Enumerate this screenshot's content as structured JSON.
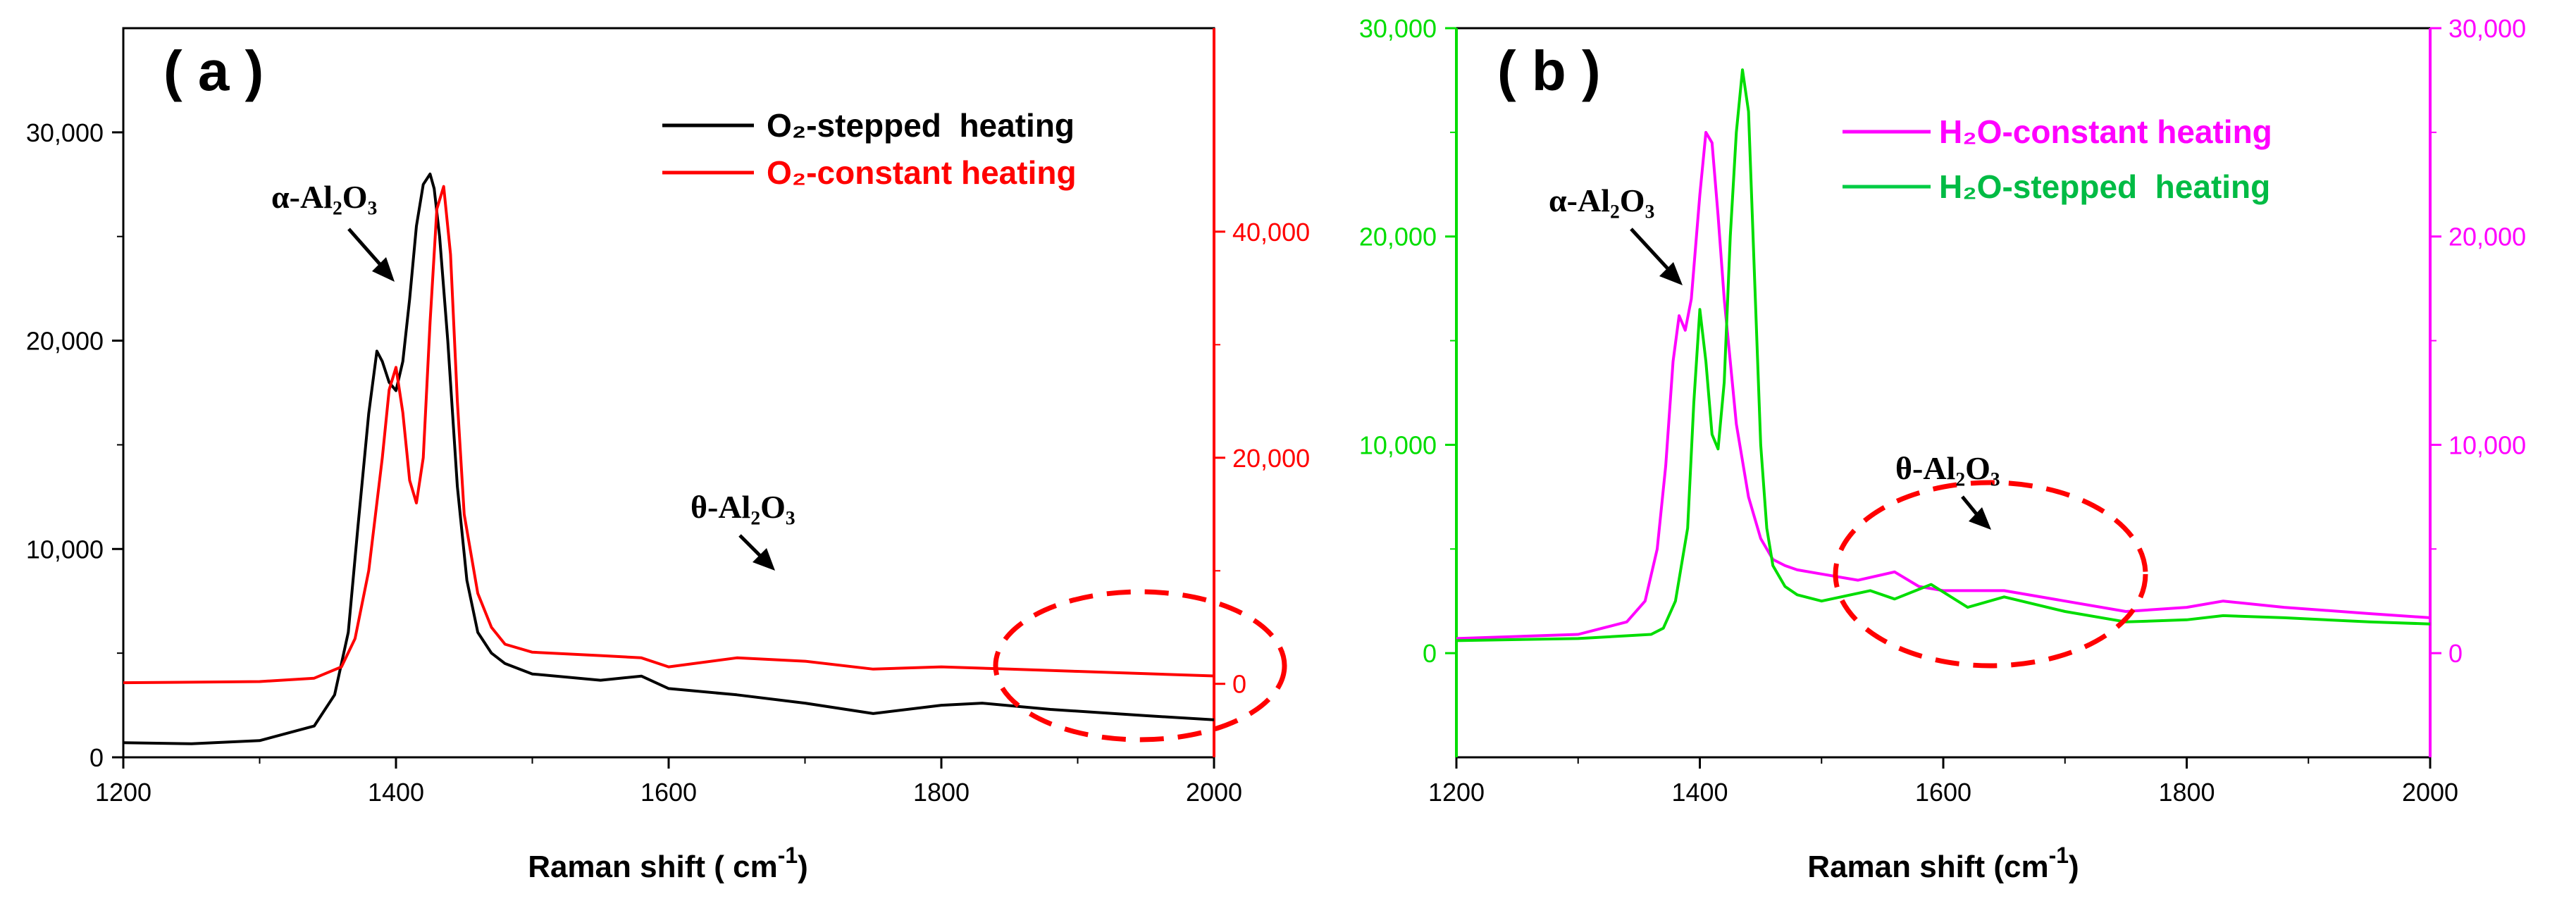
{
  "chart_data": [
    {
      "panel_label": "( a )",
      "type": "line",
      "xlabel": "Raman shift ( cm",
      "xlabel_sup": "-1",
      "xlabel_tail": ")",
      "xlim": [
        1200,
        2000
      ],
      "x_ticks": [
        1200,
        1400,
        1600,
        1800,
        2000
      ],
      "x_tick_labels": [
        "1200",
        "1400",
        "1600",
        "1800",
        "2000"
      ],
      "left_axis": {
        "ylim": [
          0,
          35000
        ],
        "ticks": [
          0,
          10000,
          20000,
          30000
        ],
        "tick_labels": [
          "0",
          "10,000",
          "20,000",
          "30,000"
        ],
        "color": "#000000"
      },
      "right_axis": {
        "ylim": [
          -6500,
          58000
        ],
        "ticks": [
          0,
          20000,
          40000
        ],
        "tick_labels": [
          "0",
          "20,000",
          "40,000"
        ],
        "color": "#ff0000"
      },
      "series": [
        {
          "name": "O2-stepped heating",
          "axis": "left",
          "color": "#000000",
          "x": [
            1200,
            1250,
            1300,
            1340,
            1355,
            1365,
            1372,
            1380,
            1386,
            1390,
            1395,
            1400,
            1405,
            1410,
            1415,
            1420,
            1425,
            1428,
            1432,
            1438,
            1445,
            1452,
            1460,
            1470,
            1480,
            1500,
            1550,
            1580,
            1600,
            1650,
            1700,
            1750,
            1800,
            1830,
            1880,
            1950,
            2000
          ],
          "y": [
            700,
            650,
            800,
            1500,
            3000,
            6000,
            11000,
            16500,
            19500,
            19000,
            18000,
            17600,
            19000,
            22000,
            25500,
            27500,
            28000,
            27300,
            25000,
            20000,
            13000,
            8500,
            6000,
            5000,
            4500,
            4000,
            3700,
            3900,
            3300,
            3000,
            2600,
            2100,
            2500,
            2600,
            2300,
            2000,
            1800
          ]
        },
        {
          "name": "O2-constant heating",
          "axis": "right",
          "color": "#ff0000",
          "x": [
            1200,
            1300,
            1340,
            1360,
            1370,
            1380,
            1390,
            1395,
            1400,
            1405,
            1410,
            1415,
            1420,
            1425,
            1430,
            1435,
            1440,
            1445,
            1450,
            1460,
            1470,
            1480,
            1500,
            1550,
            1580,
            1600,
            1650,
            1700,
            1750,
            1800,
            1850,
            1900,
            1950,
            2000
          ],
          "y": [
            100,
            200,
            500,
            1500,
            4000,
            10000,
            20000,
            26000,
            28000,
            24000,
            18000,
            16000,
            20000,
            32000,
            42000,
            44000,
            38000,
            25000,
            15000,
            8000,
            5000,
            3500,
            2800,
            2500,
            2300,
            1500,
            2300,
            2000,
            1300,
            1500,
            1300,
            1100,
            900,
            700
          ]
        }
      ],
      "legend": [
        "O₂-stepped  heating",
        "O₂-constant heating"
      ],
      "annotations": {
        "alpha": {
          "label": "α-Al₂O₃",
          "points_to_x": 1390,
          "points_to_y": 22000
        },
        "theta": {
          "label": "θ-Al₂O₃",
          "points_to_x": 1680,
          "points_to_y": 9500
        }
      }
    },
    {
      "panel_label": "( b )",
      "type": "line",
      "xlabel": "Raman shift (cm",
      "xlabel_sup": "-1",
      "xlabel_tail": ")",
      "xlim": [
        1200,
        2000
      ],
      "x_ticks": [
        1200,
        1400,
        1600,
        1800,
        2000
      ],
      "x_tick_labels": [
        "1200",
        "1400",
        "1600",
        "1800",
        "2000"
      ],
      "left_axis": {
        "ylim": [
          -5000,
          30000
        ],
        "ticks": [
          0,
          10000,
          20000,
          30000
        ],
        "tick_labels": [
          "0",
          "10,000",
          "20,000",
          "30,000"
        ],
        "color": "#00dd00"
      },
      "right_axis": {
        "ylim": [
          -5000,
          30000
        ],
        "ticks": [
          0,
          10000,
          20000,
          30000
        ],
        "tick_labels": [
          "0",
          "10,000",
          "20,000",
          "30,000"
        ],
        "color": "#ff00ff"
      },
      "series": [
        {
          "name": "H2O-constant heating",
          "axis": "right",
          "color": "#ff00ff",
          "x": [
            1200,
            1300,
            1340,
            1355,
            1365,
            1372,
            1378,
            1383,
            1388,
            1393,
            1400,
            1405,
            1410,
            1415,
            1420,
            1430,
            1440,
            1450,
            1460,
            1470,
            1480,
            1500,
            1530,
            1560,
            1580,
            1600,
            1650,
            1700,
            1750,
            1800,
            1830,
            1880,
            1950,
            2000
          ],
          "y": [
            700,
            900,
            1500,
            2500,
            5000,
            9000,
            14000,
            16200,
            15500,
            17000,
            22000,
            25000,
            24500,
            21000,
            17000,
            11000,
            7500,
            5500,
            4500,
            4200,
            4000,
            3800,
            3500,
            3900,
            3200,
            3000,
            3000,
            2500,
            2000,
            2200,
            2500,
            2200,
            1900,
            1700
          ]
        },
        {
          "name": "H2O-stepped heating",
          "axis": "left",
          "color": "#00dd00",
          "x": [
            1200,
            1300,
            1360,
            1370,
            1380,
            1390,
            1395,
            1400,
            1405,
            1410,
            1415,
            1420,
            1425,
            1430,
            1435,
            1440,
            1445,
            1450,
            1455,
            1460,
            1470,
            1480,
            1500,
            1540,
            1560,
            1590,
            1620,
            1650,
            1700,
            1750,
            1800,
            1830,
            1880,
            1950,
            2000
          ],
          "y": [
            600,
            700,
            900,
            1200,
            2500,
            6000,
            12000,
            16500,
            14000,
            10500,
            9800,
            13000,
            20000,
            25000,
            28000,
            26000,
            18000,
            10000,
            6000,
            4200,
            3200,
            2800,
            2500,
            3000,
            2600,
            3300,
            2200,
            2700,
            2000,
            1500,
            1600,
            1800,
            1700,
            1500,
            1400
          ]
        }
      ],
      "legend": [
        "H₂O-constant heating",
        "H₂O-stepped  heating"
      ],
      "annotations": {
        "alpha": {
          "label": "α-Al₂O₃",
          "points_to_x": 1380,
          "points_to_y": 18200
        },
        "theta": {
          "label": "θ-Al₂O₃",
          "points_to_x": 1640,
          "points_to_y": 6200
        }
      }
    }
  ]
}
